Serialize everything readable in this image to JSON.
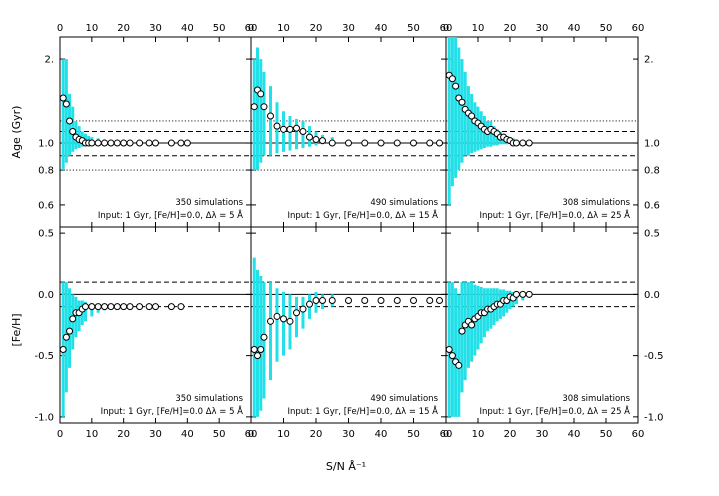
{
  "figure": {
    "xlabel": "S/N Å⁻¹",
    "age_ylabel": "Age (Gyr)",
    "feh_ylabel": "[Fe/H]",
    "top_axis_ticks": [
      "0",
      "10",
      "20",
      "30",
      "40",
      "50",
      "60"
    ],
    "bottom_axis_ticks": [
      "0",
      "10",
      "20",
      "30",
      "40",
      "50",
      "60"
    ]
  },
  "colors": {
    "errorbar": "#22e0e8",
    "line": "#000000",
    "marker_edge": "#000000",
    "marker_fill": "#ffffff"
  },
  "chart_data": [
    {
      "id": "age-panel-1",
      "type": "scatter",
      "quantity": "age",
      "xlim": [
        0,
        60
      ],
      "ylim": [
        0.5,
        2.4
      ],
      "y_scale": "log",
      "yticks": [
        0.6,
        0.8,
        1.0,
        2.0
      ],
      "ytick_labels": [
        "0.6",
        "0.8",
        "1.0",
        "2."
      ],
      "solid_line": 1.0,
      "dashed_lines": [
        0.9,
        1.1
      ],
      "dotted_lines": [
        0.8,
        1.2
      ],
      "annotation": [
        "350 simulations",
        "Input:  1 Gyr,  [Fe/H]=0.0,  Δλ = 5 Å"
      ],
      "x": [
        1,
        2,
        3,
        4,
        5,
        6,
        7,
        8,
        9,
        10,
        12,
        14,
        16,
        18,
        20,
        22,
        25,
        28,
        30,
        35,
        38,
        40
      ],
      "y": [
        1.45,
        1.38,
        1.2,
        1.1,
        1.05,
        1.03,
        1.02,
        1.0,
        1.0,
        1.0,
        1.0,
        1.0,
        1.0,
        1.0,
        1.0,
        1.0,
        1.0,
        1.0,
        1.0,
        1.0,
        1.0,
        1.0
      ],
      "err_low": [
        0.8,
        0.85,
        0.9,
        0.93,
        0.95,
        0.96,
        0.97,
        0.98,
        0.98,
        0.99,
        0.99,
        0.99,
        1.0,
        1.0,
        1.0,
        1.0,
        1.0,
        1.0,
        1.0,
        1.0,
        1.0,
        1.0
      ],
      "err_high": [
        2.0,
        2.0,
        1.5,
        1.35,
        1.2,
        1.15,
        1.1,
        1.08,
        1.06,
        1.05,
        1.04,
        1.03,
        1.02,
        1.02,
        1.02,
        1.01,
        1.01,
        1.01,
        1.01,
        1.0,
        1.0,
        1.0
      ]
    },
    {
      "id": "age-panel-2",
      "type": "scatter",
      "quantity": "age",
      "xlim": [
        0,
        60
      ],
      "ylim": [
        0.5,
        2.4
      ],
      "y_scale": "log",
      "yticks": [
        0.6,
        0.8,
        1.0,
        2.0
      ],
      "ytick_labels": [
        "0.6",
        "0.8",
        "1.0",
        "2."
      ],
      "solid_line": 1.0,
      "dashed_lines": [
        0.9,
        1.1
      ],
      "dotted_lines": [
        0.8,
        1.2
      ],
      "annotation": [
        "490 simulations",
        "Input:  1 Gyr,  [Fe/H]=0.0,  Δλ = 15 Å"
      ],
      "x": [
        1,
        2,
        3,
        4,
        6,
        8,
        10,
        12,
        14,
        16,
        18,
        20,
        22,
        25,
        30,
        35,
        40,
        45,
        50,
        55,
        58
      ],
      "y": [
        1.35,
        1.55,
        1.5,
        1.35,
        1.25,
        1.15,
        1.12,
        1.12,
        1.13,
        1.1,
        1.05,
        1.03,
        1.02,
        1.0,
        1.0,
        1.0,
        1.0,
        1.0,
        1.0,
        1.0,
        1.0
      ],
      "err_low": [
        0.8,
        0.8,
        0.85,
        0.9,
        0.9,
        0.92,
        0.93,
        0.94,
        0.95,
        0.96,
        0.97,
        0.98,
        0.99,
        0.99,
        1.0,
        1.0,
        1.0,
        1.0,
        1.0,
        1.0,
        1.0
      ],
      "err_high": [
        2.0,
        2.2,
        2.0,
        1.8,
        1.6,
        1.4,
        1.3,
        1.25,
        1.22,
        1.2,
        1.15,
        1.1,
        1.07,
        1.05,
        1.02,
        1.01,
        1.01,
        1.0,
        1.0,
        1.0,
        1.0
      ]
    },
    {
      "id": "age-panel-3",
      "type": "scatter",
      "quantity": "age",
      "xlim": [
        0,
        60
      ],
      "ylim": [
        0.5,
        2.4
      ],
      "y_scale": "log",
      "yticks": [
        0.6,
        0.8,
        1.0,
        2.0
      ],
      "ytick_labels": [
        "0.6",
        "0.8",
        "1.0",
        "2."
      ],
      "solid_line": 1.0,
      "dashed_lines": [
        0.9,
        1.1
      ],
      "dotted_lines": [
        0.8,
        1.2
      ],
      "annotation": [
        "308 simulations",
        "Input:  1 Gyr,  [Fe/H]=0.0,  Δλ = 25 Å"
      ],
      "x": [
        1,
        2,
        3,
        4,
        5,
        6,
        7,
        8,
        9,
        10,
        11,
        12,
        13,
        14,
        15,
        16,
        17,
        18,
        19,
        20,
        21,
        22,
        24,
        26
      ],
      "y": [
        1.75,
        1.7,
        1.6,
        1.45,
        1.4,
        1.32,
        1.28,
        1.25,
        1.2,
        1.18,
        1.15,
        1.12,
        1.1,
        1.12,
        1.1,
        1.08,
        1.05,
        1.05,
        1.03,
        1.02,
        1.0,
        1.0,
        1.0,
        1.0
      ],
      "err_low": [
        0.6,
        0.7,
        0.75,
        0.8,
        0.85,
        0.9,
        0.9,
        0.92,
        0.93,
        0.94,
        0.95,
        0.96,
        0.97,
        0.97,
        0.98,
        0.98,
        0.99,
        0.99,
        0.99,
        1.0,
        1.0,
        1.0,
        1.0,
        1.0
      ],
      "err_high": [
        2.4,
        2.4,
        2.4,
        2.2,
        2.0,
        1.8,
        1.6,
        1.5,
        1.4,
        1.35,
        1.3,
        1.25,
        1.2,
        1.2,
        1.15,
        1.12,
        1.1,
        1.08,
        1.06,
        1.05,
        1.04,
        1.03,
        1.02,
        1.01
      ]
    },
    {
      "id": "feh-panel-1",
      "type": "scatter",
      "quantity": "feh",
      "xlim": [
        0,
        60
      ],
      "ylim": [
        -1.05,
        0.55
      ],
      "y_scale": "linear",
      "yticks": [
        -1.0,
        -0.5,
        0.0,
        0.5
      ],
      "ytick_labels": [
        "-1.0",
        "-0.5",
        "0.0",
        "0.5"
      ],
      "solid_line": 0.0,
      "dashed_lines": [
        -0.1,
        0.1
      ],
      "dotted_lines": [],
      "annotation": [
        "350 simulations",
        "Input:  1 Gyr,  [Fe/H]=0.0  Δλ = 5 Å"
      ],
      "x": [
        1,
        2,
        3,
        4,
        5,
        6,
        7,
        8,
        10,
        12,
        14,
        16,
        18,
        20,
        22,
        25,
        28,
        30,
        35,
        38
      ],
      "y": [
        -0.45,
        -0.35,
        -0.3,
        -0.2,
        -0.15,
        -0.15,
        -0.12,
        -0.1,
        -0.1,
        -0.1,
        -0.1,
        -0.1,
        -0.1,
        -0.1,
        -0.1,
        -0.1,
        -0.1,
        -0.1,
        -0.1,
        -0.1
      ],
      "err_low": [
        -1.0,
        -0.8,
        -0.6,
        -0.45,
        -0.35,
        -0.3,
        -0.25,
        -0.22,
        -0.18,
        -0.15,
        -0.13,
        -0.12,
        -0.11,
        -0.11,
        -0.1,
        -0.1,
        -0.1,
        -0.1,
        -0.1,
        -0.1
      ],
      "err_high": [
        0.1,
        0.1,
        0.05,
        0.0,
        -0.02,
        -0.05,
        -0.05,
        -0.06,
        -0.07,
        -0.08,
        -0.08,
        -0.09,
        -0.09,
        -0.09,
        -0.09,
        -0.1,
        -0.1,
        -0.1,
        -0.1,
        -0.1
      ]
    },
    {
      "id": "feh-panel-2",
      "type": "scatter",
      "quantity": "feh",
      "xlim": [
        0,
        60
      ],
      "ylim": [
        -1.05,
        0.55
      ],
      "y_scale": "linear",
      "yticks": [
        -1.0,
        -0.5,
        0.0,
        0.5
      ],
      "ytick_labels": [
        "-1.0",
        "-0.5",
        "0.0",
        "0.5"
      ],
      "solid_line": 0.0,
      "dashed_lines": [
        -0.1,
        0.1
      ],
      "dotted_lines": [],
      "annotation": [
        "490 simulations",
        "Input:  1 Gyr,  [Fe/H]=0.0,  Δλ = 15 Å"
      ],
      "x": [
        1,
        2,
        3,
        4,
        6,
        8,
        10,
        12,
        14,
        16,
        18,
        20,
        22,
        25,
        30,
        35,
        40,
        45,
        50,
        55,
        58
      ],
      "y": [
        -0.45,
        -0.5,
        -0.45,
        -0.35,
        -0.22,
        -0.18,
        -0.2,
        -0.22,
        -0.15,
        -0.12,
        -0.08,
        -0.05,
        -0.05,
        -0.05,
        -0.05,
        -0.05,
        -0.05,
        -0.05,
        -0.05,
        -0.05,
        -0.05
      ],
      "err_low": [
        -1.0,
        -1.0,
        -0.95,
        -0.85,
        -0.7,
        -0.55,
        -0.5,
        -0.45,
        -0.35,
        -0.28,
        -0.2,
        -0.15,
        -0.12,
        -0.1,
        -0.08,
        -0.06,
        -0.06,
        -0.05,
        -0.05,
        -0.05,
        -0.05
      ],
      "err_high": [
        0.3,
        0.2,
        0.15,
        0.1,
        0.1,
        0.05,
        0.02,
        0.0,
        -0.02,
        -0.02,
        0.0,
        0.02,
        0.0,
        0.0,
        -0.03,
        -0.04,
        -0.04,
        -0.05,
        -0.05,
        -0.05,
        -0.05
      ]
    },
    {
      "id": "feh-panel-3",
      "type": "scatter",
      "quantity": "feh",
      "xlim": [
        0,
        60
      ],
      "ylim": [
        -1.05,
        0.55
      ],
      "y_scale": "linear",
      "yticks": [
        -1.0,
        -0.5,
        0.0,
        0.5
      ],
      "ytick_labels": [
        "-1.0",
        "-0.5",
        "0.0",
        "0.5"
      ],
      "solid_line": 0.0,
      "dashed_lines": [
        -0.1,
        0.1
      ],
      "dotted_lines": [],
      "annotation": [
        "308 simulations",
        "Input:  1 Gyr,  [Fe/H]=0.0,  Δλ = 25 Å"
      ],
      "x": [
        1,
        2,
        3,
        4,
        5,
        6,
        7,
        8,
        9,
        10,
        11,
        12,
        13,
        14,
        15,
        16,
        17,
        18,
        19,
        20,
        21,
        22,
        24,
        26
      ],
      "y": [
        -0.45,
        -0.5,
        -0.55,
        -0.58,
        -0.3,
        -0.25,
        -0.22,
        -0.25,
        -0.2,
        -0.18,
        -0.15,
        -0.15,
        -0.12,
        -0.12,
        -0.1,
        -0.08,
        -0.08,
        -0.05,
        -0.05,
        -0.02,
        -0.03,
        0.0,
        0.0,
        0.0
      ],
      "err_low": [
        -1.0,
        -1.0,
        -1.0,
        -1.0,
        -0.8,
        -0.7,
        -0.6,
        -0.55,
        -0.5,
        -0.45,
        -0.4,
        -0.35,
        -0.3,
        -0.28,
        -0.25,
        -0.22,
        -0.2,
        -0.18,
        -0.15,
        -0.12,
        -0.1,
        -0.08,
        -0.05,
        -0.02
      ],
      "err_high": [
        0.1,
        0.1,
        0.05,
        0.0,
        0.1,
        0.1,
        0.1,
        0.1,
        0.08,
        0.07,
        0.06,
        0.05,
        0.05,
        0.05,
        0.05,
        0.05,
        0.04,
        0.04,
        0.03,
        0.03,
        0.02,
        0.02,
        0.02,
        0.01
      ]
    }
  ]
}
